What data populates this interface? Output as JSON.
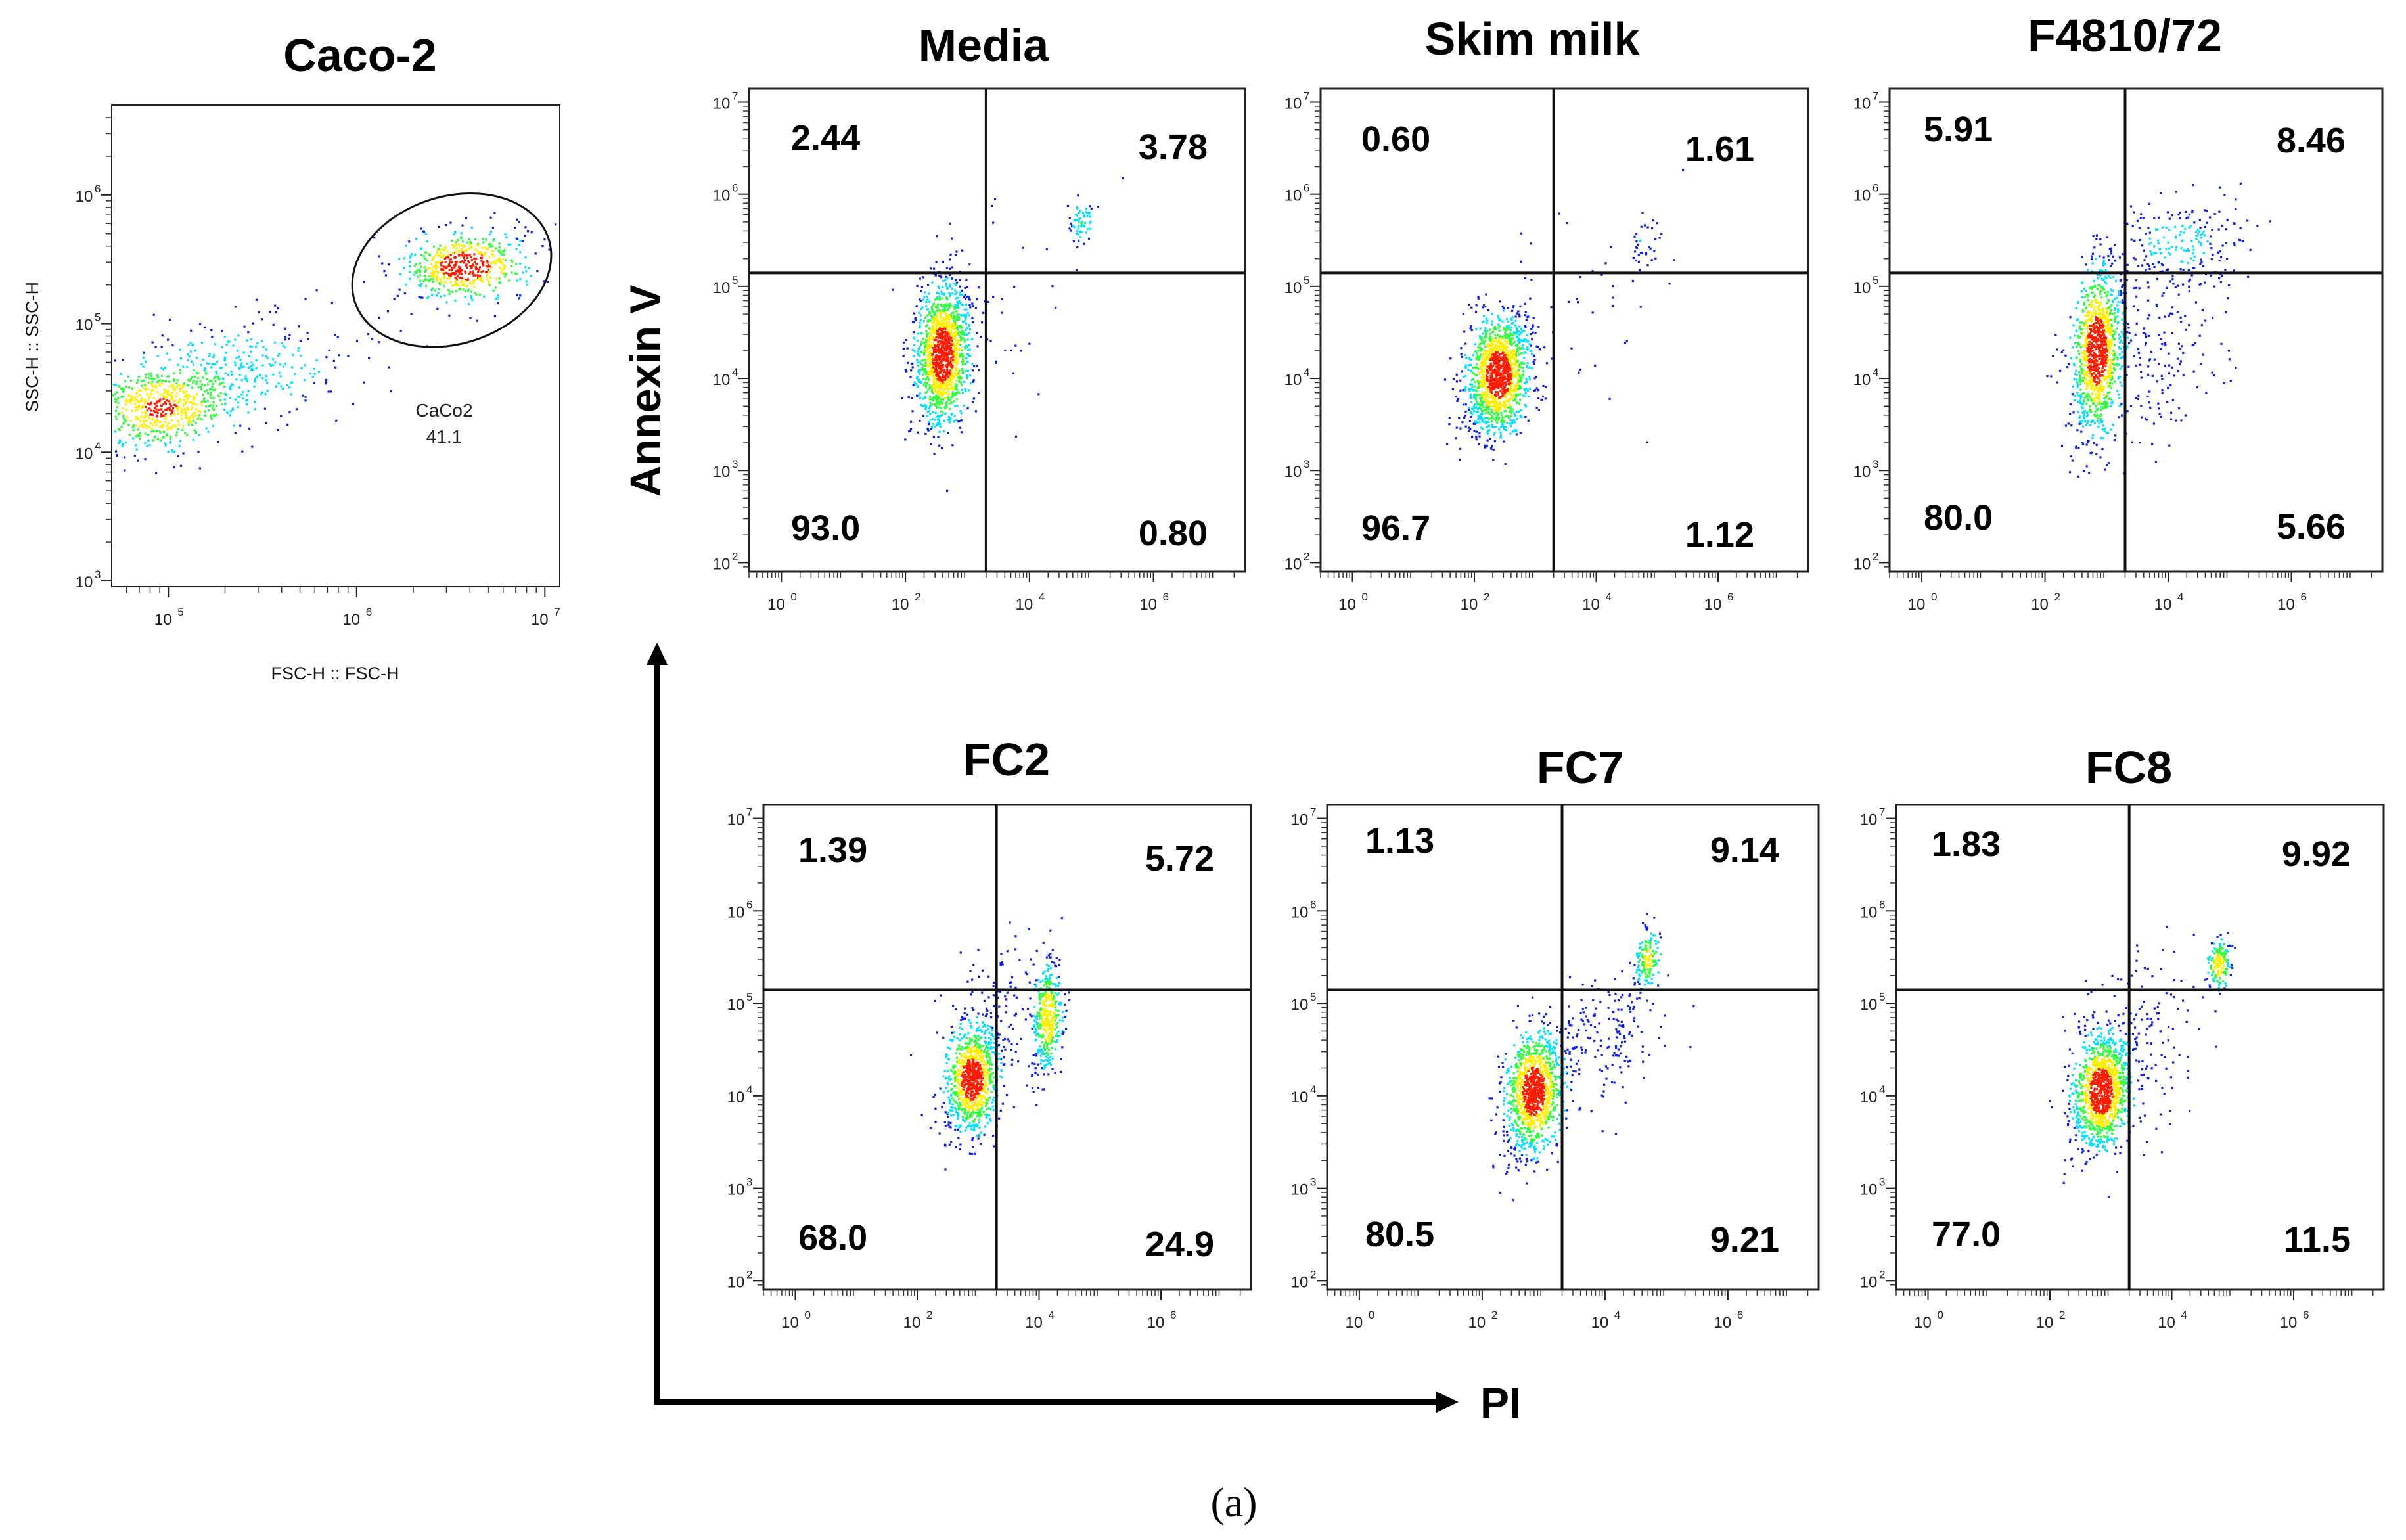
{
  "figure": {
    "caption": "(a)",
    "axes": {
      "y_label": "Annexin V",
      "x_label": "PI"
    }
  },
  "colors": {
    "density_low": "#0a1cf0",
    "density_mid": "#00e0ff",
    "density_midhigh": "#2cff3a",
    "density_high": "#ffee00",
    "density_peak": "#ff1a00"
  },
  "chart_data": [
    {
      "type": "scatter",
      "panel": "gating",
      "title": "Caco-2",
      "xlabel": "FSC-H :: FSC-H",
      "ylabel": "SSC-H :: SSC-H",
      "x_scale": "log",
      "y_scale": "log",
      "xlim": [
        50000,
        12000000
      ],
      "ylim": [
        900,
        5000000
      ],
      "x_ticks": [
        {
          "value": 100000,
          "base": "10",
          "exp": "5"
        },
        {
          "value": 1000000,
          "base": "10",
          "exp": "6"
        },
        {
          "value": 10000000,
          "base": "10",
          "exp": "7"
        }
      ],
      "y_ticks": [
        {
          "value": 1000,
          "base": "10",
          "exp": "3"
        },
        {
          "value": 10000,
          "base": "10",
          "exp": "4"
        },
        {
          "value": 100000,
          "base": "10",
          "exp": "5"
        },
        {
          "value": 1000000,
          "base": "10",
          "exp": "6"
        }
      ],
      "gate": {
        "name": "CaCo2",
        "percent": "41.1",
        "center_x": 3200000,
        "center_y": 260000
      },
      "populations": [
        {
          "cx": 90000,
          "cy": 22000,
          "sx": 0.2,
          "sy": 0.17,
          "weight": 0.42
        },
        {
          "cx": 250000,
          "cy": 45000,
          "sx": 0.32,
          "sy": 0.2,
          "weight": 0.2
        },
        {
          "cx": 3800000,
          "cy": 280000,
          "sx": 0.17,
          "sy": 0.14,
          "weight": 0.38
        }
      ]
    },
    {
      "type": "scatter",
      "panel": "quadrant",
      "title": "Media",
      "xlabel": "PI",
      "ylabel": "Annexin V",
      "x_scale": "log",
      "y_scale": "log",
      "xlim": [
        0.3,
        30000000
      ],
      "ylim": [
        80,
        14000000
      ],
      "x_ticks": [
        {
          "value": 1,
          "base": "10",
          "exp": "0"
        },
        {
          "value": 100,
          "base": "10",
          "exp": "2"
        },
        {
          "value": 10000,
          "base": "10",
          "exp": "4"
        },
        {
          "value": 1000000,
          "base": "10",
          "exp": "6"
        }
      ],
      "y_ticks": [
        {
          "value": 100,
          "base": "10",
          "exp": "2"
        },
        {
          "value": 1000,
          "base": "10",
          "exp": "3"
        },
        {
          "value": 10000,
          "base": "10",
          "exp": "4"
        },
        {
          "value": 100000,
          "base": "10",
          "exp": "5"
        },
        {
          "value": 1000000,
          "base": "10",
          "exp": "6"
        },
        {
          "value": 10000000,
          "base": "10",
          "exp": "7"
        }
      ],
      "quadrant_lines": {
        "x": 2000,
        "y": 140000
      },
      "quadrants": {
        "upper_left": "2.44",
        "upper_right": "3.78",
        "lower_left": "93.0",
        "lower_right": "0.80"
      },
      "populations": [
        {
          "cx": 400,
          "cy": 18000,
          "sx": 0.22,
          "sy": 0.38,
          "weight": 0.93
        },
        {
          "cx": 70000,
          "cy": 500000,
          "sx": 0.1,
          "sy": 0.14,
          "weight": 0.04
        },
        {
          "cx": 3000,
          "cy": 60000,
          "sx": 0.8,
          "sy": 0.6,
          "weight": 0.03
        }
      ]
    },
    {
      "type": "scatter",
      "panel": "quadrant",
      "title": "Skim milk",
      "xlabel": "PI",
      "ylabel": "Annexin V",
      "x_scale": "log",
      "y_scale": "log",
      "xlim": [
        0.3,
        30000000
      ],
      "ylim": [
        80,
        14000000
      ],
      "x_ticks": [
        {
          "value": 1,
          "base": "10",
          "exp": "0"
        },
        {
          "value": 100,
          "base": "10",
          "exp": "2"
        },
        {
          "value": 10000,
          "base": "10",
          "exp": "4"
        },
        {
          "value": 1000000,
          "base": "10",
          "exp": "6"
        }
      ],
      "y_ticks": [
        {
          "value": 100,
          "base": "10",
          "exp": "2"
        },
        {
          "value": 1000,
          "base": "10",
          "exp": "3"
        },
        {
          "value": 10000,
          "base": "10",
          "exp": "4"
        },
        {
          "value": 100000,
          "base": "10",
          "exp": "5"
        },
        {
          "value": 1000000,
          "base": "10",
          "exp": "6"
        },
        {
          "value": 10000000,
          "base": "10",
          "exp": "7"
        }
      ],
      "quadrant_lines": {
        "x": 2000,
        "y": 140000
      },
      "quadrants": {
        "upper_left": "0.60",
        "upper_right": "1.61",
        "lower_left": "96.7",
        "lower_right": "1.12"
      },
      "populations": [
        {
          "cx": 250,
          "cy": 11000,
          "sx": 0.26,
          "sy": 0.32,
          "weight": 0.95
        },
        {
          "cx": 60000,
          "cy": 300000,
          "sx": 0.12,
          "sy": 0.15,
          "weight": 0.02
        },
        {
          "cx": 3000,
          "cy": 40000,
          "sx": 0.9,
          "sy": 0.6,
          "weight": 0.03
        }
      ]
    },
    {
      "type": "scatter",
      "panel": "quadrant",
      "title": "F4810/72",
      "xlabel": "PI",
      "ylabel": "Annexin V",
      "x_scale": "log",
      "y_scale": "log",
      "xlim": [
        0.3,
        30000000
      ],
      "ylim": [
        80,
        14000000
      ],
      "x_ticks": [
        {
          "value": 1,
          "base": "10",
          "exp": "0"
        },
        {
          "value": 100,
          "base": "10",
          "exp": "2"
        },
        {
          "value": 10000,
          "base": "10",
          "exp": "4"
        },
        {
          "value": 1000000,
          "base": "10",
          "exp": "6"
        }
      ],
      "y_ticks": [
        {
          "value": 100,
          "base": "10",
          "exp": "2"
        },
        {
          "value": 1000,
          "base": "10",
          "exp": "3"
        },
        {
          "value": 10000,
          "base": "10",
          "exp": "4"
        },
        {
          "value": 100000,
          "base": "10",
          "exp": "5"
        },
        {
          "value": 1000000,
          "base": "10",
          "exp": "6"
        },
        {
          "value": 10000000,
          "base": "10",
          "exp": "7"
        }
      ],
      "quadrant_lines": {
        "x": 2000,
        "y": 140000
      },
      "quadrants": {
        "upper_left": "5.91",
        "upper_right": "8.46",
        "lower_left": "80.0",
        "lower_right": "5.66"
      },
      "populations": [
        {
          "cx": 700,
          "cy": 20000,
          "sx": 0.2,
          "sy": 0.45,
          "weight": 0.72
        },
        {
          "cx": 15000,
          "cy": 300000,
          "sx": 0.55,
          "sy": 0.25,
          "weight": 0.14
        },
        {
          "cx": 6000,
          "cy": 20000,
          "sx": 0.6,
          "sy": 0.5,
          "weight": 0.14
        }
      ]
    },
    {
      "type": "scatter",
      "panel": "quadrant",
      "title": "FC2",
      "xlabel": "PI",
      "ylabel": "Annexin V",
      "x_scale": "log",
      "y_scale": "log",
      "xlim": [
        0.3,
        30000000
      ],
      "ylim": [
        80,
        14000000
      ],
      "x_ticks": [
        {
          "value": 1,
          "base": "10",
          "exp": "0"
        },
        {
          "value": 100,
          "base": "10",
          "exp": "2"
        },
        {
          "value": 10000,
          "base": "10",
          "exp": "4"
        },
        {
          "value": 1000000,
          "base": "10",
          "exp": "6"
        }
      ],
      "y_ticks": [
        {
          "value": 100,
          "base": "10",
          "exp": "2"
        },
        {
          "value": 1000,
          "base": "10",
          "exp": "3"
        },
        {
          "value": 10000,
          "base": "10",
          "exp": "4"
        },
        {
          "value": 100000,
          "base": "10",
          "exp": "5"
        },
        {
          "value": 1000000,
          "base": "10",
          "exp": "6"
        },
        {
          "value": 10000000,
          "base": "10",
          "exp": "7"
        }
      ],
      "quadrant_lines": {
        "x": 2000,
        "y": 140000
      },
      "quadrants": {
        "upper_left": "1.39",
        "upper_right": "5.72",
        "lower_left": "68.0",
        "lower_right": "24.9"
      },
      "populations": [
        {
          "cx": 800,
          "cy": 15000,
          "sx": 0.22,
          "sy": 0.28,
          "weight": 0.66
        },
        {
          "cx": 14000,
          "cy": 70000,
          "sx": 0.12,
          "sy": 0.28,
          "weight": 0.26
        },
        {
          "cx": 1500,
          "cy": 90000,
          "sx": 0.5,
          "sy": 0.35,
          "weight": 0.08
        }
      ]
    },
    {
      "type": "scatter",
      "panel": "quadrant",
      "title": "FC7",
      "xlabel": "PI",
      "ylabel": "Annexin V",
      "x_scale": "log",
      "y_scale": "log",
      "xlim": [
        0.3,
        30000000
      ],
      "ylim": [
        80,
        14000000
      ],
      "x_ticks": [
        {
          "value": 1,
          "base": "10",
          "exp": "0"
        },
        {
          "value": 100,
          "base": "10",
          "exp": "2"
        },
        {
          "value": 10000,
          "base": "10",
          "exp": "4"
        },
        {
          "value": 1000000,
          "base": "10",
          "exp": "6"
        }
      ],
      "y_ticks": [
        {
          "value": 100,
          "base": "10",
          "exp": "2"
        },
        {
          "value": 1000,
          "base": "10",
          "exp": "3"
        },
        {
          "value": 10000,
          "base": "10",
          "exp": "4"
        },
        {
          "value": 100000,
          "base": "10",
          "exp": "5"
        },
        {
          "value": 1000000,
          "base": "10",
          "exp": "6"
        },
        {
          "value": 10000000,
          "base": "10",
          "exp": "7"
        }
      ],
      "quadrant_lines": {
        "x": 2000,
        "y": 140000
      },
      "quadrants": {
        "upper_left": "1.13",
        "upper_right": "9.14",
        "lower_left": "80.5",
        "lower_right": "9.21"
      },
      "populations": [
        {
          "cx": 700,
          "cy": 11000,
          "sx": 0.24,
          "sy": 0.33,
          "weight": 0.78
        },
        {
          "cx": 50000,
          "cy": 300000,
          "sx": 0.11,
          "sy": 0.16,
          "weight": 0.1
        },
        {
          "cx": 10000,
          "cy": 40000,
          "sx": 0.45,
          "sy": 0.4,
          "weight": 0.12
        }
      ]
    },
    {
      "type": "scatter",
      "panel": "quadrant",
      "title": "FC8",
      "xlabel": "PI",
      "ylabel": "Annexin V",
      "x_scale": "log",
      "y_scale": "log",
      "xlim": [
        0.3,
        30000000
      ],
      "ylim": [
        80,
        14000000
      ],
      "x_ticks": [
        {
          "value": 1,
          "base": "10",
          "exp": "0"
        },
        {
          "value": 100,
          "base": "10",
          "exp": "2"
        },
        {
          "value": 10000,
          "base": "10",
          "exp": "4"
        },
        {
          "value": 1000000,
          "base": "10",
          "exp": "6"
        }
      ],
      "y_ticks": [
        {
          "value": 100,
          "base": "10",
          "exp": "2"
        },
        {
          "value": 1000,
          "base": "10",
          "exp": "3"
        },
        {
          "value": 10000,
          "base": "10",
          "exp": "4"
        },
        {
          "value": 100000,
          "base": "10",
          "exp": "5"
        },
        {
          "value": 1000000,
          "base": "10",
          "exp": "6"
        },
        {
          "value": 10000000,
          "base": "10",
          "exp": "7"
        }
      ],
      "quadrant_lines": {
        "x": 2000,
        "y": 140000
      },
      "quadrants": {
        "upper_left": "1.83",
        "upper_right": "9.92",
        "lower_left": "77.0",
        "lower_right": "11.5"
      },
      "populations": [
        {
          "cx": 700,
          "cy": 11000,
          "sx": 0.24,
          "sy": 0.3,
          "weight": 0.76
        },
        {
          "cx": 60000,
          "cy": 260000,
          "sx": 0.1,
          "sy": 0.14,
          "weight": 0.1
        },
        {
          "cx": 2500,
          "cy": 30000,
          "sx": 0.5,
          "sy": 0.5,
          "weight": 0.14
        }
      ]
    }
  ]
}
